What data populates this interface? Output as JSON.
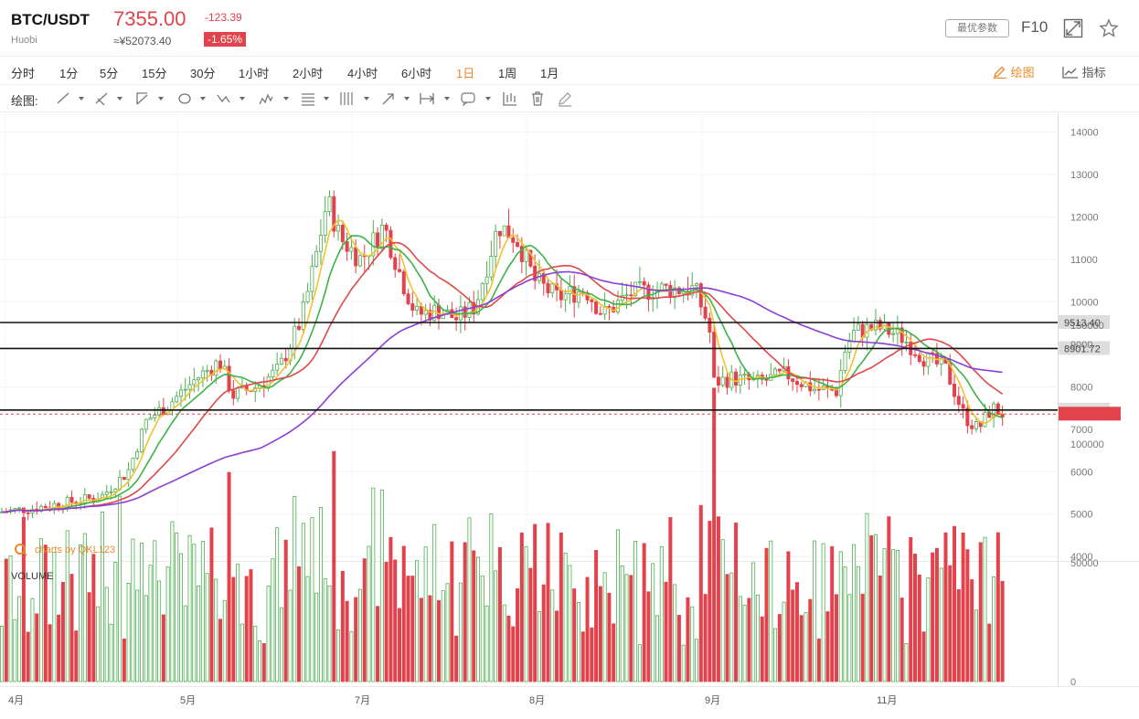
{
  "header": {
    "pair": "BTC/USDT",
    "exchange": "Huobi",
    "price": "7355.00",
    "cny_price": "≈¥52073.40",
    "change": "-123.39",
    "change_pct": "-1.65%",
    "params_label": "最优参数",
    "f10_label": "F10",
    "expand_icon": "expand-icon",
    "star_icon": "star-icon"
  },
  "periods": [
    "分时",
    "1分",
    "5分",
    "15分",
    "30分",
    "1小时",
    "2小时",
    "4小时",
    "6小时",
    "1日",
    "1周",
    "1月"
  ],
  "active_period": "1日",
  "right_buttons": {
    "draw": "绘图",
    "indicator": "指标"
  },
  "toolbar": {
    "label": "绘图:",
    "tools": [
      "line-tool-icon",
      "ray-tool-icon",
      "channel-tool-icon",
      "ellipse-tool-icon",
      "path-tool-icon",
      "pattern-tool-icon",
      "fib-tool-icon",
      "gann-tool-icon",
      "arrow-tool-icon",
      "measure-tool-icon",
      "text-tool-icon",
      "candle-tool-icon",
      "delete-icon",
      "eraser-icon"
    ]
  },
  "chart_data": {
    "type": "candlestick",
    "watermark": "charts by QKL123",
    "y_ticks": [
      "14000",
      "13000",
      "12000",
      "11000",
      "10000",
      "9000",
      "8000",
      "7000",
      "6000",
      "5000",
      "4000"
    ],
    "x_ticks": [
      "4月",
      "5月",
      "7月",
      "8月",
      "9月",
      "11月"
    ],
    "horizontal_lines": [
      {
        "label": "9513.40",
        "value": 9513.4
      },
      {
        "label": "8901.72",
        "value": 8901.72
      },
      {
        "label": "7452.38",
        "value": 7452.38
      }
    ],
    "current_price_line": 7355.0,
    "volume_label": "VOLUME",
    "volume_ticks": [
      "150000",
      "100000",
      "50000",
      "0"
    ],
    "colors": {
      "up": "#4caf50",
      "down": "#e2424b",
      "ma5": "#f2c12e",
      "ma10": "#3bb34a",
      "ma20": "#e04848",
      "ma60": "#8a3fd6"
    }
  }
}
